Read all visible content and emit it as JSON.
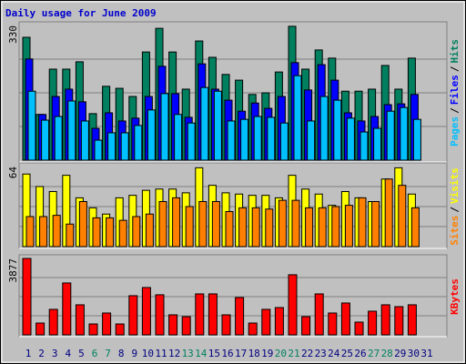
{
  "chart_data": [
    {
      "type": "bar",
      "title": "Daily usage for June 2009",
      "title_color": "#0000cc",
      "ylim": [
        0,
        330
      ],
      "yticks": [
        330
      ],
      "grid_values": [
        82.5,
        165,
        247.5
      ],
      "legend_separator": "/",
      "series": [
        {
          "name": "Hits",
          "color": "#00805f",
          "values": [
            301,
            112,
            223,
            223,
            241,
            114,
            181,
            176,
            156,
            265,
            323,
            265,
            174,
            292,
            252,
            210,
            196,
            161,
            165,
            216,
            328,
            223,
            270,
            250,
            169,
            169,
            174,
            232,
            174,
            250,
            null
          ]
        },
        {
          "name": "Files",
          "color": "#0000ff",
          "values": [
            248,
            112,
            156,
            174,
            143,
            78,
            116,
            96,
            103,
            156,
            230,
            163,
            105,
            236,
            174,
            147,
            120,
            140,
            127,
            156,
            239,
            172,
            234,
            196,
            116,
            96,
            107,
            136,
            138,
            161,
            null
          ]
        },
        {
          "name": "Pages",
          "color": "#00c0ff",
          "values": [
            169,
            98,
            107,
            145,
            96,
            49,
            67,
            67,
            85,
            123,
            163,
            112,
            91,
            178,
            169,
            96,
            100,
            107,
            105,
            91,
            207,
            96,
            156,
            147,
            103,
            69,
            78,
            120,
            129,
            100,
            null
          ]
        }
      ]
    },
    {
      "type": "bar",
      "ylim": [
        0,
        64
      ],
      "yticks": [
        64
      ],
      "grid_values": [
        16,
        32,
        48
      ],
      "legend_separator": "/",
      "series": [
        {
          "name": "Visits",
          "color": "#ffff00",
          "values": [
            58,
            48,
            44,
            57,
            39,
            31,
            26,
            39,
            41,
            45,
            46,
            46,
            43,
            63,
            49,
            43,
            42,
            41,
            41,
            39,
            57,
            46,
            42,
            33,
            44,
            39,
            36,
            54,
            63,
            42,
            null
          ]
        },
        {
          "name": "Sites",
          "color": "#ff8000",
          "values": [
            24,
            24,
            25,
            18,
            36,
            23,
            23,
            21,
            24,
            26,
            36,
            39,
            32,
            36,
            36,
            28,
            31,
            31,
            30,
            37,
            37,
            31,
            31,
            32,
            33,
            39,
            36,
            54,
            49,
            31,
            null
          ]
        }
      ]
    },
    {
      "type": "bar",
      "ylim": [
        0,
        3877
      ],
      "yticks": [
        3877
      ],
      "grid_values": [
        969,
        1938,
        2908
      ],
      "categories": [
        "1",
        "2",
        "3",
        "4",
        "5",
        "6",
        "7",
        "8",
        "9",
        "10",
        "11",
        "12",
        "13",
        "14",
        "15",
        "16",
        "17",
        "18",
        "19",
        "20",
        "21",
        "22",
        "23",
        "24",
        "25",
        "26",
        "27",
        "28",
        "29",
        "30",
        "31"
      ],
      "category_colors": [
        "#000080",
        "#000080",
        "#000080",
        "#000080",
        "#000080",
        "#00805f",
        "#00805f",
        "#000080",
        "#000080",
        "#000080",
        "#000080",
        "#000080",
        "#00805f",
        "#00805f",
        "#000080",
        "#000080",
        "#000080",
        "#000080",
        "#000080",
        "#00805f",
        "#00805f",
        "#000080",
        "#000080",
        "#000080",
        "#000080",
        "#000080",
        "#00805f",
        "#00805f",
        "#000080",
        "#000080",
        "#000080"
      ],
      "series": [
        {
          "name": "KBytes",
          "color": "#ff0000",
          "values": [
            3877,
            600,
            1294,
            2633,
            1525,
            554,
            1109,
            554,
            1987,
            2402,
            2033,
            1016,
            924,
            2079,
            2079,
            1016,
            1894,
            600,
            1294,
            1386,
            3049,
            924,
            2079,
            1109,
            1617,
            647,
            1201,
            1525,
            1432,
            1525,
            null
          ]
        }
      ]
    }
  ]
}
